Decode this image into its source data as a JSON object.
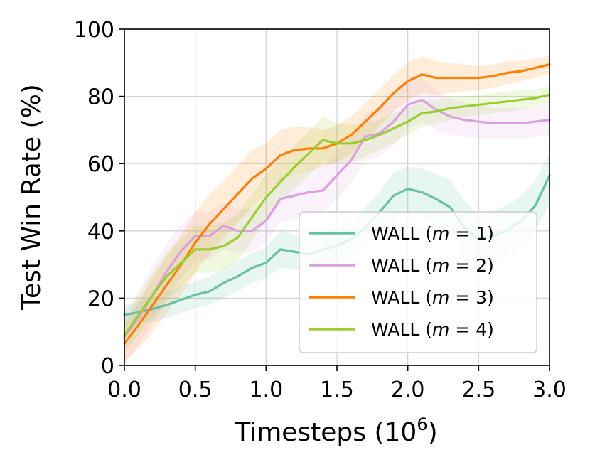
{
  "chart_data": {
    "type": "line",
    "xlabel": "Timesteps (10",
    "xlabel_sup": "6",
    "xlabel_close": ")",
    "ylabel": "Test Win Rate (%)",
    "xlim": [
      0,
      3
    ],
    "ylim": [
      0,
      100
    ],
    "xticks": [
      "0.0",
      "0.5",
      "1.0",
      "1.5",
      "2.0",
      "2.5",
      "3.0"
    ],
    "xtick_values": [
      0,
      0.5,
      1.0,
      1.5,
      2.0,
      2.5,
      3.0
    ],
    "yticks": [
      "0",
      "20",
      "40",
      "60",
      "80",
      "100"
    ],
    "ytick_values": [
      0,
      20,
      40,
      60,
      80,
      100
    ],
    "grid": true,
    "legend_position": "lower-right",
    "x": [
      0.0,
      0.1,
      0.2,
      0.3,
      0.4,
      0.5,
      0.6,
      0.7,
      0.8,
      0.9,
      1.0,
      1.1,
      1.2,
      1.3,
      1.4,
      1.5,
      1.6,
      1.7,
      1.8,
      1.9,
      2.0,
      2.1,
      2.2,
      2.3,
      2.4,
      2.5,
      2.6,
      2.7,
      2.8,
      2.9,
      3.0
    ],
    "series": [
      {
        "prefix": "WALL (",
        "var": "m",
        "suffix": " = 1)",
        "color": "#66c2a5",
        "values": [
          15.0,
          15.8,
          16.8,
          18.0,
          19.5,
          21.0,
          22.0,
          24.5,
          26.5,
          29.0,
          30.5,
          34.5,
          33.8,
          33.0,
          34.5,
          35.5,
          37.5,
          41.0,
          45.5,
          50.5,
          52.5,
          51.5,
          49.5,
          47.0,
          41.0,
          37.5,
          38.5,
          40.0,
          43.0,
          47.5,
          56.5
        ],
        "lower": [
          12.0,
          12.5,
          13.0,
          14.0,
          15.5,
          17.0,
          18.0,
          20.0,
          22.0,
          24.5,
          26.0,
          29.0,
          28.5,
          28.0,
          29.5,
          30.5,
          32.0,
          35.0,
          39.5,
          43.5,
          45.5,
          44.5,
          42.0,
          39.0,
          33.0,
          30.5,
          31.0,
          32.5,
          35.5,
          40.0,
          48.0
        ],
        "upper": [
          18.0,
          19.0,
          20.5,
          22.0,
          23.5,
          25.0,
          26.5,
          29.0,
          31.0,
          33.5,
          35.0,
          40.0,
          39.0,
          38.0,
          39.5,
          41.0,
          43.0,
          47.0,
          51.5,
          57.5,
          59.0,
          58.5,
          57.0,
          55.0,
          49.0,
          44.5,
          46.0,
          47.5,
          50.5,
          55.0,
          63.0
        ]
      },
      {
        "prefix": "WALL (",
        "var": "m",
        "suffix": " = 2)",
        "color": "#de9ee2",
        "values": [
          8.5,
          14.0,
          21.0,
          28.0,
          34.0,
          38.5,
          38.5,
          41.5,
          40.0,
          40.0,
          43.0,
          49.5,
          50.5,
          51.5,
          52.0,
          56.5,
          61.0,
          68.0,
          69.0,
          72.5,
          77.5,
          79.0,
          76.0,
          74.0,
          73.0,
          72.5,
          72.0,
          72.0,
          72.0,
          72.5,
          73.0
        ],
        "lower": [
          1.0,
          6.0,
          12.5,
          19.5,
          26.0,
          31.0,
          31.5,
          34.5,
          33.5,
          33.5,
          36.5,
          42.5,
          43.5,
          44.5,
          45.0,
          49.5,
          54.0,
          61.0,
          62.0,
          65.5,
          70.5,
          72.5,
          70.0,
          68.5,
          68.0,
          67.5,
          67.5,
          67.5,
          67.5,
          68.0,
          68.5
        ],
        "upper": [
          16.0,
          22.0,
          29.5,
          36.5,
          42.0,
          46.0,
          45.5,
          48.5,
          46.5,
          46.5,
          49.5,
          56.5,
          57.5,
          58.5,
          59.0,
          63.5,
          68.0,
          75.0,
          76.0,
          79.5,
          84.5,
          85.5,
          82.0,
          79.5,
          78.0,
          77.5,
          76.5,
          76.5,
          76.5,
          77.0,
          77.5
        ]
      },
      {
        "prefix": "WALL (",
        "var": "m",
        "suffix": " = 3)",
        "color": "#ff7f00",
        "values": [
          6.5,
          12.0,
          18.0,
          24.0,
          30.0,
          36.5,
          42.0,
          46.5,
          51.0,
          55.5,
          58.5,
          62.5,
          64.0,
          64.5,
          64.5,
          66.0,
          68.5,
          72.5,
          76.5,
          81.0,
          84.5,
          86.5,
          85.5,
          85.5,
          85.5,
          85.5,
          86.0,
          87.0,
          87.5,
          88.5,
          89.5
        ],
        "lower": [
          1.0,
          5.0,
          10.0,
          15.5,
          21.0,
          27.5,
          33.0,
          38.0,
          42.5,
          47.0,
          51.0,
          55.0,
          57.0,
          58.0,
          59.0,
          60.5,
          63.0,
          67.0,
          71.0,
          75.5,
          79.0,
          81.0,
          80.5,
          81.0,
          81.5,
          82.0,
          82.5,
          83.5,
          84.5,
          85.5,
          87.0
        ],
        "upper": [
          12.0,
          19.0,
          26.0,
          32.5,
          39.0,
          45.5,
          51.0,
          55.0,
          59.5,
          64.0,
          66.0,
          70.0,
          71.0,
          71.0,
          70.0,
          71.5,
          74.0,
          78.0,
          82.0,
          86.5,
          90.0,
          92.0,
          90.5,
          90.0,
          89.5,
          89.0,
          89.5,
          90.5,
          90.5,
          91.5,
          92.0
        ]
      },
      {
        "prefix": "WALL (",
        "var": "m",
        "suffix": " = 4)",
        "color": "#9acd32",
        "values": [
          9.0,
          15.0,
          21.0,
          26.5,
          30.5,
          34.5,
          34.5,
          35.5,
          38.0,
          44.0,
          50.0,
          54.5,
          59.0,
          63.0,
          67.0,
          66.0,
          66.0,
          67.0,
          68.5,
          70.5,
          72.5,
          75.0,
          75.5,
          76.5,
          77.0,
          77.5,
          78.0,
          78.5,
          79.0,
          79.5,
          80.5
        ],
        "lower": [
          4.0,
          9.0,
          14.5,
          19.5,
          23.5,
          27.5,
          27.5,
          28.5,
          31.0,
          37.0,
          43.0,
          48.0,
          52.5,
          56.5,
          60.5,
          60.0,
          60.5,
          62.0,
          64.0,
          66.0,
          68.5,
          71.0,
          72.0,
          73.0,
          74.0,
          74.5,
          75.0,
          75.5,
          76.0,
          77.0,
          78.0
        ],
        "upper": [
          14.0,
          21.0,
          27.5,
          33.5,
          37.5,
          41.5,
          41.5,
          42.5,
          45.0,
          51.0,
          57.0,
          61.0,
          65.5,
          69.5,
          74.0,
          72.0,
          71.5,
          72.0,
          73.0,
          75.0,
          76.5,
          79.0,
          79.0,
          80.0,
          80.0,
          80.5,
          81.0,
          81.5,
          82.0,
          82.0,
          83.0
        ]
      }
    ]
  }
}
